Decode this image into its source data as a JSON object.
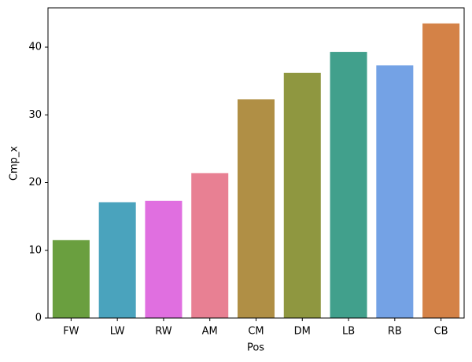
{
  "chart_data": {
    "type": "bar",
    "x_label": "Pos",
    "y_label": "Cmp_x",
    "categories": [
      "FW",
      "LW",
      "RW",
      "AM",
      "CM",
      "DM",
      "LB",
      "RB",
      "CB"
    ],
    "values": [
      11.5,
      17.1,
      17.3,
      21.4,
      32.3,
      36.2,
      39.3,
      37.3,
      43.5
    ],
    "colors": [
      "#6a9f3f",
      "#4aa3bd",
      "#e06fe0",
      "#e88093",
      "#b08f45",
      "#8f9740",
      "#41a08c",
      "#74a2e5",
      "#d48247"
    ],
    "ylim": [
      0,
      45.8
    ],
    "yticks": [
      0,
      10,
      20,
      30,
      40
    ],
    "grid": false
  }
}
